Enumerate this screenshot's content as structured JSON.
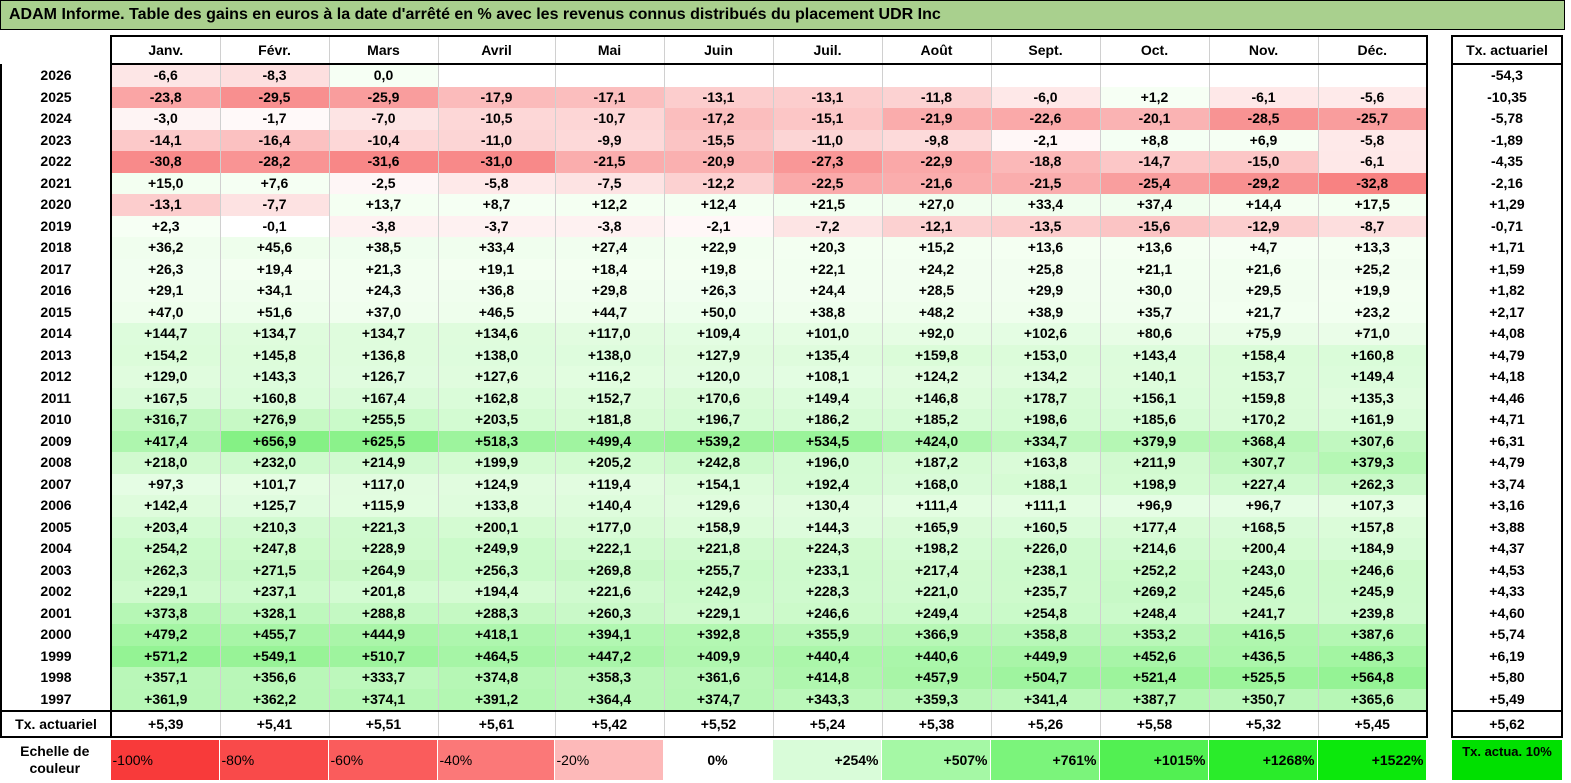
{
  "title": "ADAM Informe. Table des gains en euros à la date d'arrêté en % avec les revenus connus distribués du placement UDR Inc",
  "months": [
    "Janv.",
    "Févr.",
    "Mars",
    "Avril",
    "Mai",
    "Juin",
    "Juil.",
    "Août",
    "Sept.",
    "Oct.",
    "Nov.",
    "Déc."
  ],
  "actuarial_header": "Tx. actuariel",
  "rows": [
    {
      "year": "2026",
      "values": [
        "-6,6",
        "-8,3",
        "0,0",
        "",
        "",
        "",
        "",
        "",
        "",
        "",
        "",
        ""
      ],
      "rate": "-54,3"
    },
    {
      "year": "2025",
      "values": [
        "-23,8",
        "-29,5",
        "-25,9",
        "-17,9",
        "-17,1",
        "-13,1",
        "-13,1",
        "-11,8",
        "-6,0",
        "+1,2",
        "-6,1",
        "-5,6"
      ],
      "rate": "-10,35"
    },
    {
      "year": "2024",
      "values": [
        "-3,0",
        "-1,7",
        "-7,0",
        "-10,5",
        "-10,7",
        "-17,2",
        "-15,1",
        "-21,9",
        "-22,6",
        "-20,1",
        "-28,5",
        "-25,7"
      ],
      "rate": "-5,78"
    },
    {
      "year": "2023",
      "values": [
        "-14,1",
        "-16,4",
        "-10,4",
        "-11,0",
        "-9,9",
        "-15,5",
        "-11,0",
        "-9,8",
        "-2,1",
        "+8,8",
        "+6,9",
        "-5,8"
      ],
      "rate": "-1,89"
    },
    {
      "year": "2022",
      "values": [
        "-30,8",
        "-28,2",
        "-31,6",
        "-31,0",
        "-21,5",
        "-20,9",
        "-27,3",
        "-22,9",
        "-18,8",
        "-14,7",
        "-15,0",
        "-6,1"
      ],
      "rate": "-4,35"
    },
    {
      "year": "2021",
      "values": [
        "+15,0",
        "+7,6",
        "-2,5",
        "-5,8",
        "-7,5",
        "-12,2",
        "-22,5",
        "-21,6",
        "-21,5",
        "-25,4",
        "-29,2",
        "-32,8"
      ],
      "rate": "-2,16"
    },
    {
      "year": "2020",
      "values": [
        "-13,1",
        "-7,7",
        "+13,7",
        "+8,7",
        "+12,2",
        "+12,4",
        "+21,5",
        "+27,0",
        "+33,4",
        "+37,4",
        "+14,4",
        "+17,5"
      ],
      "rate": "+1,29"
    },
    {
      "year": "2019",
      "values": [
        "+2,3",
        "-0,1",
        "-3,8",
        "-3,7",
        "-3,8",
        "-2,1",
        "-7,2",
        "-12,1",
        "-13,5",
        "-15,6",
        "-12,9",
        "-8,7"
      ],
      "rate": "-0,71"
    },
    {
      "year": "2018",
      "values": [
        "+36,2",
        "+45,6",
        "+38,5",
        "+33,4",
        "+27,4",
        "+22,9",
        "+20,3",
        "+15,2",
        "+13,6",
        "+13,6",
        "+4,7",
        "+13,3"
      ],
      "rate": "+1,71"
    },
    {
      "year": "2017",
      "values": [
        "+26,3",
        "+19,4",
        "+21,3",
        "+19,1",
        "+18,4",
        "+19,8",
        "+22,1",
        "+24,2",
        "+25,8",
        "+21,1",
        "+21,6",
        "+25,2"
      ],
      "rate": "+1,59"
    },
    {
      "year": "2016",
      "values": [
        "+29,1",
        "+34,1",
        "+24,3",
        "+36,8",
        "+29,8",
        "+26,3",
        "+24,4",
        "+28,5",
        "+29,9",
        "+30,0",
        "+29,5",
        "+19,9"
      ],
      "rate": "+1,82"
    },
    {
      "year": "2015",
      "values": [
        "+47,0",
        "+51,6",
        "+37,0",
        "+46,5",
        "+44,7",
        "+50,0",
        "+38,8",
        "+48,2",
        "+38,9",
        "+35,7",
        "+21,7",
        "+23,2"
      ],
      "rate": "+2,17"
    },
    {
      "year": "2014",
      "values": [
        "+144,7",
        "+134,7",
        "+134,7",
        "+134,6",
        "+117,0",
        "+109,4",
        "+101,0",
        "+92,0",
        "+102,6",
        "+80,6",
        "+75,9",
        "+71,0"
      ],
      "rate": "+4,08"
    },
    {
      "year": "2013",
      "values": [
        "+154,2",
        "+145,8",
        "+136,8",
        "+138,0",
        "+138,0",
        "+127,9",
        "+135,4",
        "+159,8",
        "+153,0",
        "+143,4",
        "+158,4",
        "+160,8"
      ],
      "rate": "+4,79"
    },
    {
      "year": "2012",
      "values": [
        "+129,0",
        "+143,3",
        "+126,7",
        "+127,6",
        "+116,2",
        "+120,0",
        "+108,1",
        "+124,2",
        "+134,2",
        "+140,1",
        "+153,7",
        "+149,4"
      ],
      "rate": "+4,18"
    },
    {
      "year": "2011",
      "values": [
        "+167,5",
        "+160,8",
        "+167,4",
        "+162,8",
        "+152,7",
        "+170,6",
        "+149,4",
        "+146,8",
        "+178,7",
        "+156,1",
        "+159,8",
        "+135,3"
      ],
      "rate": "+4,46"
    },
    {
      "year": "2010",
      "values": [
        "+316,7",
        "+276,9",
        "+255,5",
        "+203,5",
        "+181,8",
        "+196,7",
        "+186,2",
        "+185,2",
        "+198,6",
        "+185,6",
        "+170,2",
        "+161,9"
      ],
      "rate": "+4,71"
    },
    {
      "year": "2009",
      "values": [
        "+417,4",
        "+656,9",
        "+625,5",
        "+518,3",
        "+499,4",
        "+539,2",
        "+534,5",
        "+424,0",
        "+334,7",
        "+379,9",
        "+368,4",
        "+307,6"
      ],
      "rate": "+6,31"
    },
    {
      "year": "2008",
      "values": [
        "+218,0",
        "+232,0",
        "+214,9",
        "+199,9",
        "+205,2",
        "+242,8",
        "+196,0",
        "+187,2",
        "+163,8",
        "+211,9",
        "+307,7",
        "+379,3"
      ],
      "rate": "+4,79"
    },
    {
      "year": "2007",
      "values": [
        "+97,3",
        "+101,7",
        "+117,0",
        "+124,9",
        "+119,4",
        "+154,1",
        "+192,4",
        "+168,0",
        "+188,1",
        "+198,9",
        "+227,4",
        "+262,3"
      ],
      "rate": "+3,74"
    },
    {
      "year": "2006",
      "values": [
        "+142,4",
        "+125,7",
        "+115,9",
        "+133,8",
        "+140,4",
        "+129,6",
        "+130,4",
        "+111,4",
        "+111,1",
        "+96,9",
        "+96,7",
        "+107,3"
      ],
      "rate": "+3,16"
    },
    {
      "year": "2005",
      "values": [
        "+203,4",
        "+210,3",
        "+221,3",
        "+200,1",
        "+177,0",
        "+158,9",
        "+144,3",
        "+165,9",
        "+160,5",
        "+177,4",
        "+168,5",
        "+157,8"
      ],
      "rate": "+3,88"
    },
    {
      "year": "2004",
      "values": [
        "+254,2",
        "+247,8",
        "+228,9",
        "+249,9",
        "+222,1",
        "+221,8",
        "+224,3",
        "+198,2",
        "+226,0",
        "+214,6",
        "+200,4",
        "+184,9"
      ],
      "rate": "+4,37"
    },
    {
      "year": "2003",
      "values": [
        "+262,3",
        "+271,5",
        "+264,9",
        "+256,3",
        "+269,8",
        "+255,7",
        "+233,1",
        "+217,4",
        "+238,1",
        "+252,2",
        "+243,0",
        "+246,6"
      ],
      "rate": "+4,53"
    },
    {
      "year": "2002",
      "values": [
        "+229,1",
        "+237,1",
        "+201,8",
        "+194,4",
        "+221,6",
        "+242,9",
        "+228,3",
        "+221,0",
        "+235,7",
        "+269,2",
        "+245,6",
        "+245,9"
      ],
      "rate": "+4,33"
    },
    {
      "year": "2001",
      "values": [
        "+373,8",
        "+328,1",
        "+288,8",
        "+288,3",
        "+260,3",
        "+229,1",
        "+246,6",
        "+249,4",
        "+254,8",
        "+248,4",
        "+241,7",
        "+239,8"
      ],
      "rate": "+4,60"
    },
    {
      "year": "2000",
      "values": [
        "+479,2",
        "+455,7",
        "+444,9",
        "+418,1",
        "+394,1",
        "+392,8",
        "+355,9",
        "+366,9",
        "+358,8",
        "+353,2",
        "+416,5",
        "+387,6"
      ],
      "rate": "+5,74"
    },
    {
      "year": "1999",
      "values": [
        "+571,2",
        "+549,1",
        "+510,7",
        "+464,5",
        "+447,2",
        "+409,9",
        "+440,4",
        "+440,6",
        "+449,9",
        "+452,6",
        "+436,5",
        "+486,3"
      ],
      "rate": "+6,19"
    },
    {
      "year": "1998",
      "values": [
        "+357,1",
        "+356,6",
        "+333,7",
        "+374,8",
        "+358,3",
        "+361,6",
        "+414,8",
        "+457,9",
        "+504,7",
        "+521,4",
        "+525,5",
        "+564,8"
      ],
      "rate": "+5,80"
    },
    {
      "year": "1997",
      "values": [
        "+361,9",
        "+362,2",
        "+374,1",
        "+391,2",
        "+364,4",
        "+374,7",
        "+343,3",
        "+359,3",
        "+341,4",
        "+387,7",
        "+350,7",
        "+365,6"
      ],
      "rate": "+5,49"
    }
  ],
  "footer": {
    "label": "Tx. actuariel",
    "values": [
      "+5,39",
      "+5,41",
      "+5,51",
      "+5,61",
      "+5,42",
      "+5,52",
      "+5,24",
      "+5,38",
      "+5,26",
      "+5,58",
      "+5,32",
      "+5,45"
    ],
    "rate": "+5,62"
  },
  "scale": {
    "label": "Echelle de couleur",
    "steps": [
      {
        "text": "-100%",
        "color": "#f83a3a"
      },
      {
        "text": "-80%",
        "color": "#f94a4a"
      },
      {
        "text": "-60%",
        "color": "#fa5c5c"
      },
      {
        "text": "-40%",
        "color": "#fb7878"
      },
      {
        "text": "-20%",
        "color": "#fdb9b9"
      },
      {
        "text": "0%",
        "color": "#ffffff"
      },
      {
        "text": "+254%",
        "color": "#d9fcd9"
      },
      {
        "text": "+507%",
        "color": "#a5f8a5"
      },
      {
        "text": "+761%",
        "color": "#7bf47b"
      },
      {
        "text": "+1015%",
        "color": "#52f052"
      },
      {
        "text": "+1268%",
        "color": "#2aec2a"
      },
      {
        "text": "+1522%",
        "color": "#0ce80c"
      }
    ],
    "side_label": "Tx. actua. 10%",
    "side_color": "#00e000"
  }
}
